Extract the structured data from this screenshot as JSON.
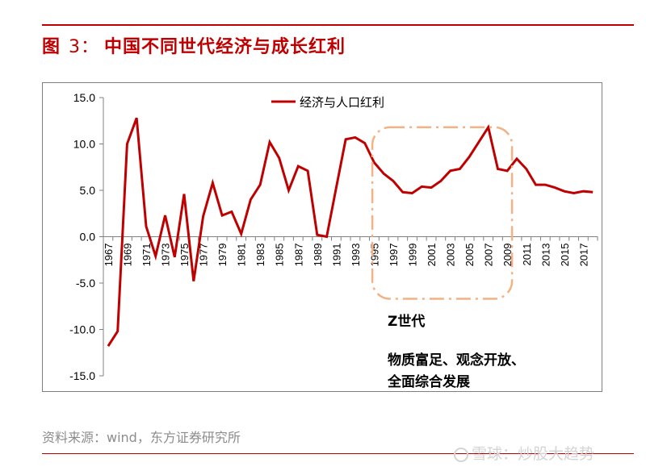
{
  "figure": {
    "label": "图",
    "number": "3：",
    "title": "中国不同世代经济与成长红利"
  },
  "source_text": "资料来源：wind，东方证券研究所",
  "watermark": "雪球：炒股大趋势",
  "colors": {
    "accent": "#c00000",
    "highlight": "#f4b183"
  },
  "chart_data": {
    "type": "line",
    "title": "",
    "xlabel": "",
    "ylabel": "",
    "ylim": [
      -15,
      15
    ],
    "yticks": [
      -15,
      -10,
      -5,
      0,
      5,
      10,
      15
    ],
    "ytick_labels": [
      "-15.0",
      "-10.0",
      "-5.0",
      "0.0",
      "5.0",
      "10.0",
      "15.0"
    ],
    "xtick_labels": [
      "1967",
      "1969",
      "1971",
      "1973",
      "1975",
      "1977",
      "1979",
      "1981",
      "1983",
      "1985",
      "1987",
      "1989",
      "1991",
      "1993",
      "1995",
      "1997",
      "1999",
      "2001",
      "2003",
      "2005",
      "2007",
      "2009",
      "2011",
      "2013",
      "2015",
      "2017"
    ],
    "grid": false,
    "legend_position": "top-center",
    "series": [
      {
        "name": "经济与人口红利",
        "color": "#c00000",
        "x": [
          1967,
          1968,
          1969,
          1970,
          1971,
          1972,
          1973,
          1974,
          1975,
          1976,
          1977,
          1978,
          1979,
          1980,
          1981,
          1982,
          1983,
          1984,
          1985,
          1986,
          1987,
          1988,
          1989,
          1990,
          1991,
          1992,
          1993,
          1994,
          1995,
          1996,
          1997,
          1998,
          1999,
          2000,
          2001,
          2002,
          2003,
          2004,
          2005,
          2006,
          2007,
          2008,
          2009,
          2010,
          2011,
          2012,
          2013,
          2014,
          2015,
          2016,
          2017,
          2018
        ],
        "values": [
          -11.8,
          -10.2,
          10.0,
          12.8,
          1.1,
          -2.1,
          2.3,
          -2.2,
          4.6,
          -4.8,
          2.2,
          5.8,
          2.3,
          2.7,
          0.3,
          4.0,
          5.6,
          10.2,
          8.5,
          5.0,
          7.6,
          7.1,
          0.2,
          0.0,
          5.3,
          10.5,
          10.7,
          10.1,
          8.0,
          6.8,
          6.0,
          4.8,
          4.7,
          5.4,
          5.3,
          6.0,
          7.1,
          7.3,
          8.6,
          10.2,
          11.8,
          7.3,
          7.1,
          8.4,
          7.3,
          5.6,
          5.6,
          5.3,
          4.9,
          4.7,
          4.9,
          4.8
        ]
      }
    ],
    "annotations": [
      {
        "kind": "dash-dot-box",
        "x_range": [
          1994.8,
          2009.5
        ],
        "y_range": [
          -6.7,
          11.8
        ],
        "label": "Z世代",
        "description_lines": [
          "物质富足、观念开放、",
          "全面综合发展"
        ]
      }
    ]
  }
}
